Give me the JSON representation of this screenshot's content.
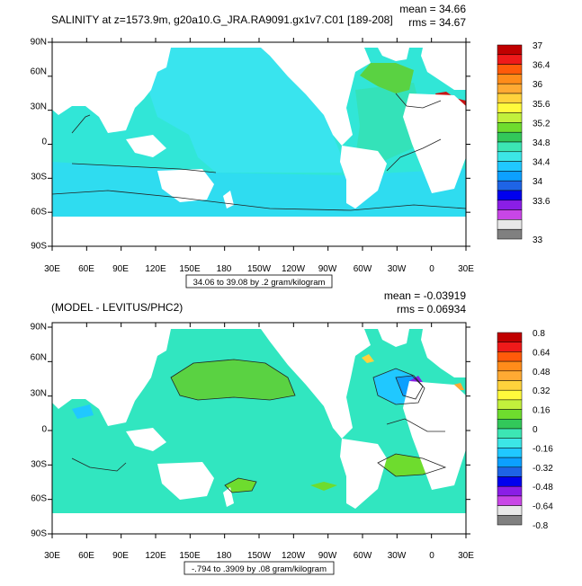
{
  "chart_data": [
    {
      "type": "heatmap",
      "title": "SALINITY at z=1573.9m, g20a10.G_JRA.RA9091.gx1v7.C01 [189-208]",
      "stats": {
        "mean_label": "mean = 34.66",
        "rms_label": "rms = 34.67"
      },
      "lat_ticks": [
        "90N",
        "60N",
        "30N",
        "0",
        "30S",
        "60S",
        "90S"
      ],
      "lon_ticks": [
        "30E",
        "60E",
        "90E",
        "120E",
        "150E",
        "180",
        "150W",
        "120W",
        "90W",
        "60W",
        "30W",
        "0",
        "30E"
      ],
      "range_label": "34.06 to 39.08 by .2 gram/kilogram",
      "colorbar": {
        "labels": [
          "37",
          "36.4",
          "36",
          "35.6",
          "35.2",
          "34.8",
          "34.4",
          "34",
          "33.6",
          "33"
        ],
        "colors": [
          "#c00000",
          "#ef1a1a",
          "#ff5a0a",
          "#ff8c1a",
          "#ffaa33",
          "#ffd23c",
          "#fffa3c",
          "#c2f03c",
          "#6edc2e",
          "#32c85a",
          "#3ce6b4",
          "#3ce6e6",
          "#20c8ff",
          "#0ca0ff",
          "#1e64e6",
          "#0000ee",
          "#8a1ee6",
          "#c846e6",
          "#e8e8e8",
          "#808080"
        ]
      },
      "fields": {
        "ocean": "#31e6d7",
        "pacific": "#39e4ee",
        "south": "#2fdcf0",
        "atlantic": "#34e2b9",
        "med": "#5ad242",
        "redsea": "#c81414",
        "polar": "#34e6c8"
      }
    },
    {
      "type": "heatmap",
      "title": "(MODEL - LEVITUS/PHC2)",
      "stats": {
        "mean_label": "mean = -0.03919",
        "rms_label": "rms = 0.06934"
      },
      "lat_ticks": [
        "90N",
        "60N",
        "30N",
        "0",
        "30S",
        "60S",
        "90S"
      ],
      "lon_ticks": [
        "30E",
        "60E",
        "90E",
        "120E",
        "150E",
        "180",
        "150W",
        "120W",
        "90W",
        "60W",
        "30W",
        "0",
        "30E"
      ],
      "range_label": "-.794 to .3909 by .08 gram/kilogram",
      "colorbar": {
        "labels": [
          "0.8",
          "0.64",
          "0.48",
          "0.32",
          "0.16",
          "0",
          "-0.16",
          "-0.32",
          "-0.48",
          "-0.64",
          "-0.8"
        ],
        "colors": [
          "#c00000",
          "#ef1a1a",
          "#ff5a0a",
          "#ff8c1a",
          "#ffaa33",
          "#ffd23c",
          "#fffa3c",
          "#c2f03c",
          "#6edc2e",
          "#32c85a",
          "#3ce6b4",
          "#3ce6e6",
          "#20c8ff",
          "#0ca0ff",
          "#1e64e6",
          "#0000ee",
          "#8a1ee6",
          "#c846e6",
          "#e8e8e8",
          "#808080"
        ]
      },
      "fields": {
        "ocean": "#31e6c0",
        "npac": "#5ad242",
        "atlantic": "#31e6c0",
        "neg": "#20c8ff",
        "deepneg": "#8a1ee6",
        "pos": "#6edc2e",
        "yellow": "#ffd23c"
      }
    }
  ]
}
